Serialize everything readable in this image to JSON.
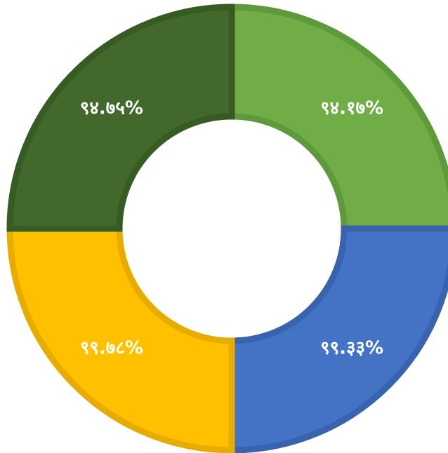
{
  "chart_data": {
    "type": "pie",
    "variant": "donut",
    "title": "",
    "legend": "none",
    "slices": [
      {
        "label": "९४.१७%",
        "value": 25,
        "color": "#70AD47",
        "stroke": "#5E9A3B"
      },
      {
        "label": "९९.३३%",
        "value": 25,
        "color": "#4472C4",
        "stroke": "#3A63AE"
      },
      {
        "label": "९९.७८%",
        "value": 25,
        "color": "#FFC000",
        "stroke": "#E6AD00"
      },
      {
        "label": "९४.७५%",
        "value": 25,
        "color": "#43682B",
        "stroke": "#385A23"
      }
    ]
  }
}
